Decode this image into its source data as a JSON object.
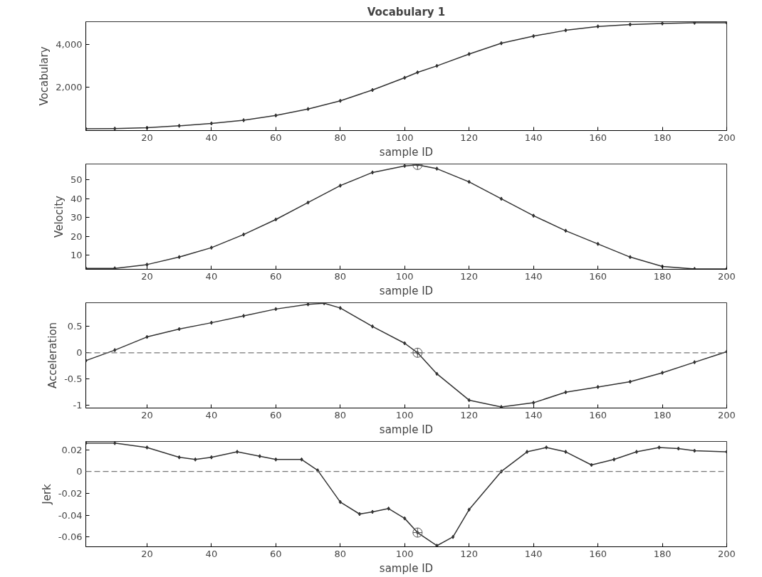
{
  "chart_data": [
    {
      "type": "line",
      "title": "Vocabulary 1",
      "xlabel": "sample ID",
      "ylabel": "Vocabulary",
      "xlim": [
        1,
        200
      ],
      "xticks": [
        20,
        40,
        60,
        80,
        100,
        120,
        140,
        160,
        180,
        200
      ],
      "ylim": [
        0,
        5050
      ],
      "yticks": [
        {
          "value": 2000,
          "label": "2,000"
        },
        {
          "value": 4000,
          "label": "4,000"
        }
      ],
      "grid": false,
      "marker": "diamond",
      "line_style": "solid",
      "series": [
        {
          "color": "#333333",
          "x": [
            1,
            10,
            20,
            30,
            40,
            50,
            60,
            70,
            80,
            90,
            100,
            104,
            110,
            120,
            130,
            140,
            150,
            160,
            170,
            180,
            190,
            200
          ],
          "values": [
            80,
            90,
            130,
            220,
            330,
            480,
            700,
            1000,
            1380,
            1880,
            2450,
            2700,
            3000,
            3550,
            4050,
            4380,
            4650,
            4830,
            4920,
            4970,
            5000,
            5000
          ]
        }
      ]
    },
    {
      "type": "line",
      "xlabel": "sample ID",
      "ylabel": "Velocity",
      "xlim": [
        1,
        200
      ],
      "xticks": [
        20,
        40,
        60,
        80,
        100,
        120,
        140,
        160,
        180,
        200
      ],
      "ylim": [
        2.5,
        58.5
      ],
      "yticks": [
        10,
        20,
        30,
        40,
        50
      ],
      "grid": false,
      "marker": "diamond",
      "line_style": "solid",
      "series": [
        {
          "color": "#333333",
          "x": [
            1,
            10,
            20,
            30,
            40,
            50,
            60,
            70,
            80,
            90,
            100,
            104,
            110,
            120,
            130,
            140,
            150,
            160,
            170,
            180,
            190,
            200
          ],
          "values": [
            3,
            3,
            5,
            9,
            14,
            21,
            29,
            38,
            47,
            54,
            57.5,
            58,
            56,
            49,
            40,
            31,
            23,
            16,
            9,
            4,
            2.7,
            2.7
          ]
        },
        {
          "type": "scatter",
          "marker": "circle",
          "color": "#555555",
          "x": [
            104
          ],
          "values": [
            58
          ]
        }
      ]
    },
    {
      "type": "line",
      "xlabel": "sample ID",
      "ylabel": "Acceleration",
      "xlim": [
        1,
        200
      ],
      "xticks": [
        20,
        40,
        60,
        80,
        100,
        120,
        140,
        160,
        180,
        200
      ],
      "ylim": [
        -1.05,
        0.95
      ],
      "yticks": [
        -1,
        -0.5,
        0,
        0.5
      ],
      "grid": false,
      "marker": "diamond",
      "line_style": "solid",
      "ref_lines": [
        {
          "axis": "y",
          "value": 0,
          "color": "#777777",
          "line_style": "dashed"
        }
      ],
      "series": [
        {
          "color": "#333333",
          "x": [
            1,
            10,
            20,
            30,
            40,
            50,
            60,
            70,
            75,
            80,
            90,
            100,
            104,
            110,
            120,
            130,
            140,
            150,
            160,
            170,
            180,
            190,
            200
          ],
          "values": [
            -0.15,
            0.05,
            0.3,
            0.45,
            0.57,
            0.7,
            0.83,
            0.92,
            0.94,
            0.85,
            0.5,
            0.18,
            0,
            -0.4,
            -0.9,
            -1.03,
            -0.95,
            -0.75,
            -0.65,
            -0.55,
            -0.38,
            -0.18,
            0.02
          ]
        },
        {
          "type": "scatter",
          "marker": "circle",
          "color": "#555555",
          "x": [
            104
          ],
          "values": [
            0
          ]
        }
      ]
    },
    {
      "type": "line",
      "xlabel": "sample ID",
      "ylabel": "Jerk",
      "xlim": [
        1,
        200
      ],
      "xticks": [
        20,
        40,
        60,
        80,
        100,
        120,
        140,
        160,
        180,
        200
      ],
      "ylim": [
        -0.069,
        0.0275
      ],
      "yticks": [
        -0.06,
        -0.04,
        -0.02,
        0,
        0.02
      ],
      "grid": false,
      "marker": "diamond",
      "line_style": "solid",
      "ref_lines": [
        {
          "axis": "y",
          "value": 0,
          "color": "#777777",
          "line_style": "dashed"
        }
      ],
      "series": [
        {
          "color": "#333333",
          "x": [
            1,
            10,
            20,
            30,
            35,
            40,
            48,
            55,
            60,
            68,
            73,
            80,
            86,
            90,
            95,
            100,
            104,
            110,
            115,
            120,
            130,
            138,
            144,
            150,
            158,
            165,
            172,
            179,
            185,
            190,
            200
          ],
          "values": [
            0.026,
            0.026,
            0.022,
            0.013,
            0.011,
            0.013,
            0.018,
            0.014,
            0.011,
            0.011,
            0.001,
            -0.028,
            -0.039,
            -0.037,
            -0.034,
            -0.043,
            -0.056,
            -0.068,
            -0.06,
            -0.035,
            0.0,
            0.018,
            0.022,
            0.018,
            0.006,
            0.011,
            0.018,
            0.022,
            0.021,
            0.019,
            0.018
          ]
        },
        {
          "type": "scatter",
          "marker": "circle",
          "color": "#555555",
          "x": [
            104
          ],
          "values": [
            -0.056
          ]
        }
      ]
    }
  ]
}
